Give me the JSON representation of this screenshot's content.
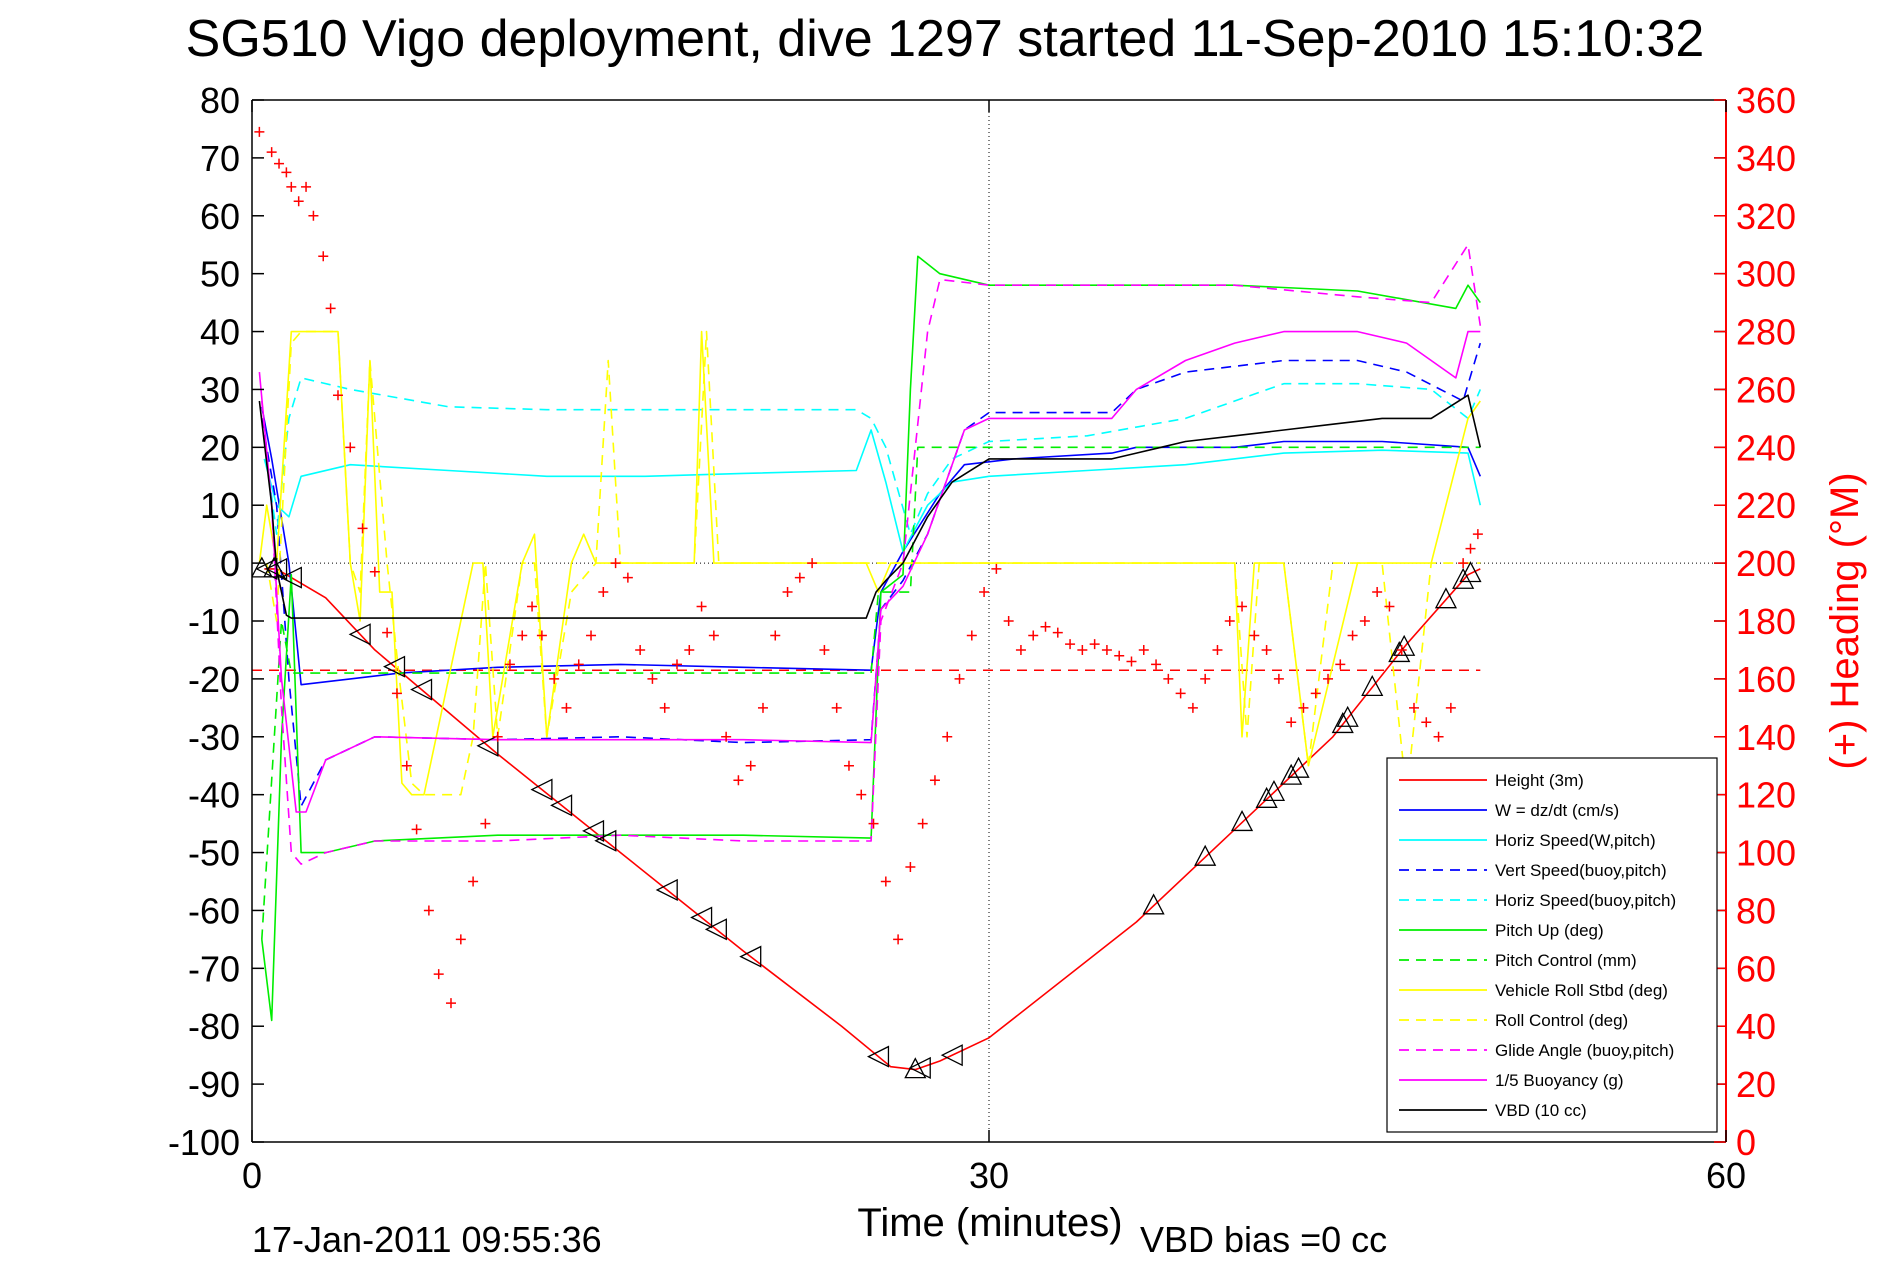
{
  "figure": {
    "title": "SG510 Vigo deployment, dive 1297 started 11-Sep-2010 15:10:32",
    "footer_timestamp": "17-Jan-2011 09:55:36",
    "footer_vbd_bias": "VBD bias =0 cc"
  },
  "chart_data": {
    "type": "line",
    "title": "SG510 Vigo deployment, dive 1297 started 11-Sep-2010 15:10:32",
    "xlabel": "Time (minutes)",
    "ylabel": "",
    "y2label": "(+) Heading (°M)",
    "xlim": [
      0,
      60
    ],
    "ylim": [
      -100,
      80
    ],
    "y2lim": [
      0,
      360
    ],
    "xticks": [
      0,
      30,
      60
    ],
    "yticks": [
      80,
      70,
      60,
      50,
      40,
      30,
      20,
      10,
      0,
      -10,
      -20,
      -30,
      -40,
      -50,
      -60,
      -70,
      -80,
      -90,
      -100
    ],
    "y2ticks": [
      360,
      340,
      320,
      300,
      280,
      260,
      240,
      220,
      200,
      180,
      160,
      140,
      120,
      100,
      80,
      60,
      40,
      20,
      0
    ],
    "grid": "dotted lines at x=30 and y=0",
    "legend_position": "bottom-right",
    "colors": {
      "red": "#ff0000",
      "blue": "#0000ff",
      "cyan": "#00ffff",
      "green": "#00ee00",
      "yellow": "#ffff00",
      "magenta": "#ff00ff",
      "black": "#000000"
    },
    "series": [
      {
        "name": "Height (3m)",
        "color": "#ff0000",
        "dash": "solid",
        "x": [
          0.5,
          1,
          3,
          5,
          10,
          15,
          20,
          24,
          26,
          27,
          28,
          30,
          36,
          40,
          44,
          47,
          49.5,
          50
        ],
        "y": [
          -1,
          -1,
          -6,
          -15,
          -33,
          -50,
          -67,
          -80,
          -87,
          -87.5,
          -86,
          -82,
          -62,
          -46,
          -30,
          -14,
          -2,
          -1
        ]
      },
      {
        "name": "W = dz/dt (cm/s)",
        "color": "#0000ff",
        "dash": "solid",
        "x": [
          0.4,
          0.8,
          1.5,
          2,
          4,
          6,
          10,
          15,
          20,
          25.2,
          25.6,
          26.5,
          28,
          29,
          31,
          35,
          36,
          38,
          40,
          42,
          46,
          49.5,
          50
        ],
        "y": [
          27,
          18,
          0,
          -21,
          -20,
          -19,
          -18,
          -17.5,
          -18,
          -18.5,
          -5,
          2,
          12,
          17,
          18,
          19,
          20,
          20,
          20,
          21,
          21,
          20,
          15
        ]
      },
      {
        "name": "Horiz Speed(W,pitch)",
        "color": "#00ffff",
        "dash": "solid",
        "x": [
          0.5,
          1,
          1.5,
          2,
          4,
          8,
          12,
          16,
          20,
          24.6,
          25.2,
          25.8,
          26.5,
          27.5,
          28.5,
          30,
          34,
          38,
          42,
          46,
          49.5,
          50
        ],
        "y": [
          18,
          10,
          8,
          15,
          17,
          16,
          15,
          15,
          15.5,
          16,
          23,
          14,
          2,
          10,
          14,
          15,
          16,
          17,
          19,
          19.5,
          19,
          10
        ]
      },
      {
        "name": "Vert Speed(buoy,pitch)",
        "color": "#0000ff",
        "dash": "dashed",
        "x": [
          0.4,
          1,
          1.5,
          2,
          3,
          5,
          10,
          15,
          20,
          25.2,
          25.6,
          26.5,
          27.5,
          29,
          30,
          35,
          36,
          38,
          40,
          42,
          45,
          47,
          49.3,
          50
        ],
        "y": [
          25,
          10,
          -20,
          -42,
          -34,
          -30,
          -30.5,
          -30,
          -31,
          -30.5,
          -8,
          -3,
          5,
          23,
          26,
          26,
          30,
          33,
          34,
          35,
          35,
          33,
          28,
          38
        ]
      },
      {
        "name": "Horiz Speed(buoy,pitch)",
        "color": "#00ffff",
        "dash": "dashed",
        "x": [
          0.6,
          1,
          1.5,
          2,
          4,
          8,
          12,
          16,
          20,
          24.6,
          25.2,
          25.8,
          26.8,
          27.5,
          28.5,
          30,
          34,
          38,
          40,
          42,
          45,
          48,
          49.5,
          50
        ],
        "y": [
          18,
          5,
          25,
          32,
          30,
          27,
          26.5,
          26.5,
          26.5,
          26.5,
          25,
          20,
          5,
          12,
          18,
          21,
          22,
          25,
          28,
          31,
          31,
          30,
          25,
          30
        ]
      },
      {
        "name": "Pitch Up (deg)",
        "color": "#00ee00",
        "dash": "solid",
        "x": [
          0.4,
          0.8,
          1.2,
          1.6,
          2,
          3,
          5,
          10,
          15,
          20,
          25.2,
          25.6,
          26.5,
          26.8,
          27.1,
          28,
          30,
          35,
          40,
          45,
          49,
          49.5,
          50
        ],
        "y": [
          -65,
          -79,
          -30,
          -2,
          -50,
          -50,
          -48,
          -47,
          -47,
          -47,
          -47.5,
          -5,
          -2,
          30,
          53,
          50,
          48,
          48,
          48,
          47,
          44,
          48,
          45
        ]
      },
      {
        "name": "Pitch Control (mm)",
        "color": "#00ee00",
        "dash": "dashed",
        "x": [
          0.4,
          1.2,
          1.6,
          2,
          10,
          25.2,
          25.5,
          26.8,
          27.1,
          30,
          40,
          49.5,
          50
        ],
        "y": [
          -65,
          -10,
          -19,
          -19,
          -19,
          -19,
          -5,
          -5,
          20,
          20,
          20,
          20,
          20
        ]
      },
      {
        "name": "Vehicle Roll Stbd (deg)",
        "color": "#ffff00",
        "dash": "solid",
        "x": [
          0.3,
          0.6,
          1,
          1.6,
          2,
          3.5,
          4,
          4.4,
          4.8,
          5.2,
          5.7,
          6.1,
          6.5,
          7,
          9,
          9.4,
          9.8,
          11,
          11.5,
          12,
          13,
          13.5,
          14,
          16,
          18,
          18.3,
          18.8,
          20,
          21,
          25,
          25.5,
          26,
          27,
          28,
          30,
          40,
          40.3,
          40.8,
          42,
          43,
          45,
          48,
          49.5,
          50
        ],
        "y": [
          0,
          10,
          0,
          40,
          40,
          40,
          0,
          -10,
          35,
          -5,
          -5,
          -38,
          -40,
          -40,
          0,
          0,
          -30,
          0,
          5,
          -30,
          0,
          5,
          0,
          0,
          0,
          40,
          0,
          0,
          0,
          0,
          -5,
          0,
          0,
          0,
          0,
          0,
          -30,
          0,
          0,
          -35,
          0,
          0,
          25,
          28
        ]
      },
      {
        "name": "Roll Control (deg)",
        "color": "#ffff00",
        "dash": "dashed",
        "x": [
          0.6,
          1,
          1.6,
          2,
          3.5,
          4,
          4.4,
          4.8,
          5.5,
          6,
          6.5,
          7,
          8.5,
          9,
          9.5,
          10,
          11,
          11.5,
          12,
          13,
          14,
          14.5,
          15,
          16,
          18,
          18.5,
          19,
          20,
          25,
          27,
          28,
          30,
          40,
          40.5,
          41,
          42,
          43,
          44,
          46,
          47,
          48,
          49.5,
          50
        ],
        "y": [
          0,
          -10,
          38,
          40,
          40,
          0,
          -5,
          35,
          0,
          -20,
          -38,
          -40,
          -40,
          -30,
          0,
          -30,
          0,
          0,
          -30,
          -5,
          0,
          35,
          0,
          0,
          0,
          40,
          0,
          0,
          0,
          0,
          0,
          0,
          0,
          -30,
          0,
          0,
          -35,
          0,
          0,
          -40,
          0,
          0,
          0
        ]
      },
      {
        "name": "Glide Angle (buoy,pitch)",
        "color": "#ff00ff",
        "dash": "dashed",
        "x": [
          0.4,
          0.8,
          1.2,
          1.6,
          2,
          3,
          5,
          10,
          15,
          20,
          25.2,
          25.6,
          26.5,
          27.5,
          28,
          30,
          35,
          40,
          45,
          48,
          49.5,
          50
        ],
        "y": [
          28,
          10,
          -25,
          -50,
          -52,
          -50,
          -48,
          -48,
          -47,
          -48,
          -48,
          -10,
          0,
          40,
          49,
          48,
          48,
          48,
          46,
          45,
          55,
          41
        ]
      },
      {
        "name": "1/5 Buoyancy (g)",
        "color": "#ff00ff",
        "dash": "solid",
        "x": [
          0.3,
          0.8,
          1.2,
          1.8,
          2.2,
          3,
          5,
          10,
          15,
          20,
          25.2,
          25.6,
          26.5,
          27.5,
          29,
          30,
          35,
          36,
          38,
          40,
          42,
          45,
          47,
          49,
          49.5,
          50
        ],
        "y": [
          33,
          10,
          -20,
          -43,
          -43,
          -34,
          -30,
          -30.5,
          -30.5,
          -30.5,
          -31,
          -8,
          -4,
          5,
          23,
          25,
          25,
          30,
          35,
          38,
          40,
          40,
          38,
          32,
          40,
          40
        ]
      },
      {
        "name": "VBD (10 cc)",
        "color": "#000000",
        "dash": "solid",
        "x": [
          0.3,
          0.8,
          1,
          1.4,
          1.6,
          2,
          25,
          25.4,
          25.8,
          26.5,
          27.5,
          28.5,
          30,
          31,
          34,
          35,
          36,
          37,
          38,
          40,
          42,
          44,
          46,
          48,
          49.5,
          50
        ],
        "y": [
          28,
          10,
          -1,
          -9,
          -9.5,
          -9.5,
          -9.5,
          -5,
          -3,
          0,
          8,
          14,
          18,
          18,
          18,
          18,
          19,
          20,
          21,
          22,
          23,
          24,
          25,
          25,
          29,
          20
        ]
      }
    ],
    "heading_series": {
      "name": "(+) Heading (°M)",
      "color": "#ff0000",
      "axis": "right",
      "marker": "+",
      "x": [
        0.3,
        0.8,
        1.1,
        1.4,
        1.6,
        1.9,
        2.2,
        2.5,
        2.9,
        3.2,
        3.5,
        4,
        4.5,
        5,
        5.5,
        5.9,
        6.3,
        6.7,
        7.2,
        7.6,
        8.1,
        8.5,
        9,
        9.5,
        10,
        10.5,
        11,
        11.4,
        11.8,
        12.3,
        12.8,
        13.3,
        13.8,
        14.3,
        14.8,
        15.3,
        15.8,
        16.3,
        16.8,
        17.3,
        17.8,
        18.3,
        18.8,
        19.3,
        19.8,
        20.3,
        20.8,
        21.3,
        21.8,
        22.3,
        22.8,
        23.3,
        23.8,
        24.3,
        24.8,
        25.3,
        25.8,
        26.3,
        26.8,
        27.3,
        27.8,
        28.3,
        28.8,
        29.3,
        29.8,
        30.3,
        30.8,
        31.3,
        31.8,
        32.3,
        32.8,
        33.3,
        33.8,
        34.3,
        34.8,
        35.3,
        35.8,
        36.3,
        36.8,
        37.3,
        37.8,
        38.3,
        38.8,
        39.3,
        39.8,
        40.3,
        40.8,
        41.3,
        41.8,
        42.3,
        42.8,
        43.3,
        43.8,
        44.3,
        44.8,
        45.3,
        45.8,
        46.3,
        46.8,
        47.3,
        47.8,
        48.3,
        48.8,
        49.3,
        49.6,
        49.9
      ],
      "y": [
        349,
        342,
        338,
        335,
        330,
        325,
        330,
        320,
        306,
        288,
        258,
        240,
        212,
        197,
        176,
        155,
        130,
        108,
        80,
        58,
        48,
        70,
        90,
        110,
        140,
        165,
        175,
        185,
        175,
        160,
        150,
        165,
        175,
        190,
        200,
        195,
        170,
        160,
        150,
        165,
        170,
        185,
        175,
        140,
        125,
        130,
        150,
        175,
        190,
        195,
        200,
        170,
        150,
        130,
        120,
        110,
        90,
        70,
        95,
        110,
        125,
        140,
        160,
        175,
        190,
        198,
        180,
        170,
        175,
        178,
        176,
        172,
        170,
        172,
        170,
        168,
        166,
        170,
        165,
        160,
        155,
        150,
        160,
        170,
        180,
        185,
        175,
        170,
        160,
        145,
        150,
        155,
        160,
        165,
        175,
        180,
        190,
        185,
        170,
        150,
        145,
        140,
        150,
        200,
        205,
        210
      ]
    },
    "reference_line": {
      "y": -18.5,
      "color": "#ff0000",
      "dash": "dashed"
    },
    "height_markers": {
      "down_x": [
        0.6,
        1.0,
        1.6,
        4.4,
        5.8,
        6.9,
        9.6,
        11.8,
        12.6,
        13.9,
        14.4,
        16.9,
        18.3,
        18.9,
        20.3,
        25.5,
        27.2,
        28.5
      ],
      "up_x": [
        0.4,
        0.9,
        27.0,
        36.7,
        38.8,
        40.3,
        41.3,
        41.6,
        42.3,
        42.6,
        44.4,
        44.6,
        45.6,
        46.7,
        46.9,
        48.6,
        49.3,
        49.6
      ]
    }
  }
}
